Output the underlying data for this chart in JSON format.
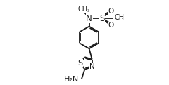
{
  "bg_color": "#ffffff",
  "line_color": "#1a1a1a",
  "line_width": 1.3,
  "font_size": 7.0,
  "figsize": [
    2.4,
    1.21
  ],
  "dpi": 100,
  "xlim": [
    0,
    10
  ],
  "ylim": [
    0,
    5.05
  ]
}
